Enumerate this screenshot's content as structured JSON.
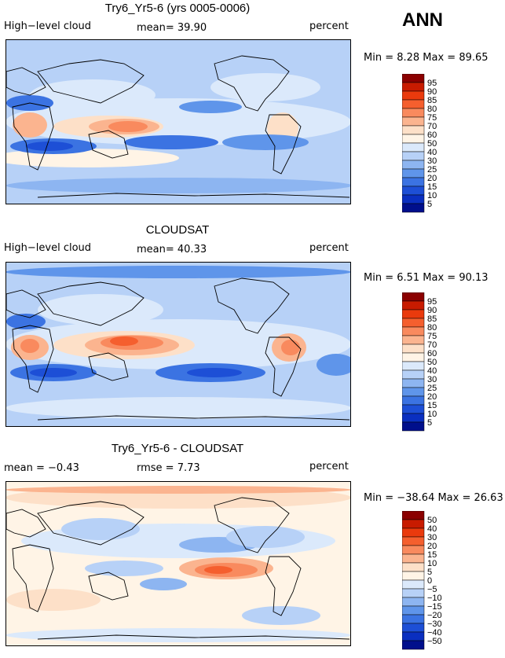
{
  "header": {
    "season": "ANN"
  },
  "panels": [
    {
      "title": "Try6_Yr5-6 (yrs 0005-0006)",
      "left_label": "High−level cloud",
      "center_label": "mean=  39.90",
      "right_label": "percent",
      "stats": "Min =   8.28 Max =  89.65",
      "colorbar_levels": [
        "95",
        "90",
        "85",
        "80",
        "75",
        "70",
        "60",
        "50",
        "40",
        "30",
        "25",
        "20",
        "15",
        "10",
        "5"
      ],
      "colorbar_colors": [
        "#8b0000",
        "#c81b00",
        "#ea3a0d",
        "#f55f2e",
        "#f98a5e",
        "#fbb48f",
        "#fde0c8",
        "#fff4e6",
        "#dbe9fb",
        "#b7d1f7",
        "#8db5f1",
        "#5f95ea",
        "#3b73e2",
        "#1d4fd6",
        "#0a2fc0",
        "#000f8c"
      ],
      "field": "model"
    },
    {
      "title": "CLOUDSAT",
      "left_label": "High−level cloud",
      "center_label": "mean=  40.33",
      "right_label": "percent",
      "stats": "Min =   6.51 Max =  90.13",
      "colorbar_levels": [
        "95",
        "90",
        "85",
        "80",
        "75",
        "70",
        "60",
        "50",
        "40",
        "30",
        "25",
        "20",
        "15",
        "10",
        "5"
      ],
      "colorbar_colors": [
        "#8b0000",
        "#c81b00",
        "#ea3a0d",
        "#f55f2e",
        "#f98a5e",
        "#fbb48f",
        "#fde0c8",
        "#fff4e6",
        "#dbe9fb",
        "#b7d1f7",
        "#8db5f1",
        "#5f95ea",
        "#3b73e2",
        "#1d4fd6",
        "#0a2fc0",
        "#000f8c"
      ],
      "field": "obs"
    },
    {
      "title": "Try6_Yr5-6 - CLOUDSAT",
      "left_label": "mean =  −0.43",
      "center_label": "rmse =   7.73",
      "right_label": "percent",
      "stats": "Min = −38.64 Max =  26.63",
      "colorbar_levels": [
        "50",
        "40",
        "30",
        "20",
        "15",
        "10",
        "5",
        "0",
        "−5",
        "−10",
        "−15",
        "−20",
        "−30",
        "−40",
        "−50"
      ],
      "colorbar_colors": [
        "#8b0000",
        "#c81b00",
        "#ea3a0d",
        "#f55f2e",
        "#f98a5e",
        "#fbb48f",
        "#fde0c8",
        "#fff4e6",
        "#dbe9fb",
        "#b7d1f7",
        "#8db5f1",
        "#5f95ea",
        "#3b73e2",
        "#1d4fd6",
        "#0a2fc0",
        "#000f8c"
      ],
      "field": "diff"
    }
  ]
}
